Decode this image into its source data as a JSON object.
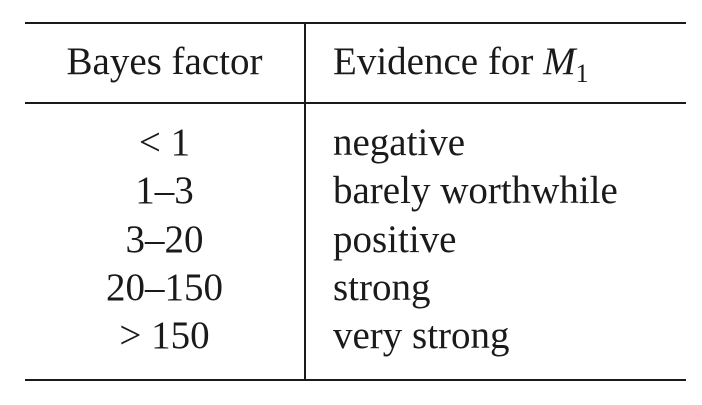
{
  "table": {
    "headers": {
      "col1": "Bayes factor",
      "col2_text": "Evidence for ",
      "col2_math": "M",
      "col2_sub": "1"
    },
    "rows": [
      {
        "factor": "< 1",
        "evidence": "negative"
      },
      {
        "factor": "1–3",
        "evidence": "barely worthwhile"
      },
      {
        "factor": "3–20",
        "evidence": "positive"
      },
      {
        "factor": "20–150",
        "evidence": "strong"
      },
      {
        "factor": "> 150",
        "evidence": "very strong"
      }
    ]
  }
}
